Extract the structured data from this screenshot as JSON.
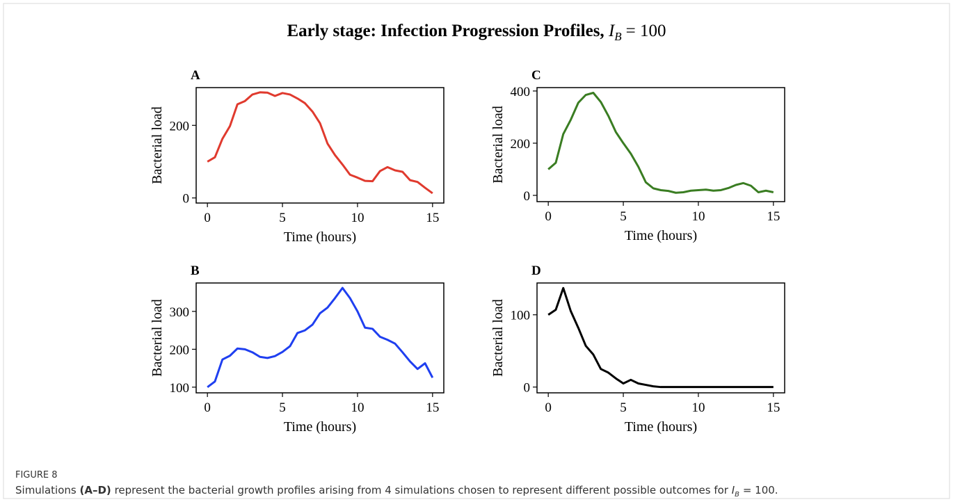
{
  "title": {
    "text": "Early stage: Infection Progression Profiles,",
    "math": {
      "var": "I",
      "sub": "B",
      "eq": "= 100"
    }
  },
  "caption": {
    "label": "FIGURE 8",
    "parts": [
      "Simulations",
      "(A–D)",
      "represent the bacterial growth profiles arising from 4 simulations chosen to represent different possible outcomes for",
      "I",
      "B",
      "= 100."
    ]
  },
  "chart_data": [
    {
      "type": "line",
      "panel_label": "A",
      "x_label": "Time (hours)",
      "y_label": "Bacterial load",
      "color": "#e03a2e",
      "x": [
        0,
        0.5,
        1,
        1.5,
        2,
        2.5,
        3,
        3.5,
        4,
        4.5,
        5,
        5.5,
        6,
        6.5,
        7,
        7.5,
        8,
        8.5,
        9,
        9.5,
        10,
        10.5,
        11,
        11.5,
        12,
        12.5,
        13,
        13.5,
        14,
        14.5,
        15
      ],
      "values": [
        100,
        112,
        163,
        198,
        258,
        267,
        285,
        291,
        290,
        281,
        289,
        285,
        274,
        261,
        238,
        206,
        150,
        118,
        92,
        64,
        56,
        47,
        46,
        74,
        85,
        76,
        72,
        49,
        44,
        28,
        13
      ],
      "xlim": [
        -0.75,
        15.75
      ],
      "xticks": [
        0,
        5,
        10,
        15
      ],
      "ylim": [
        -14,
        304
      ],
      "yticks": [
        0,
        200
      ]
    },
    {
      "type": "line",
      "panel_label": "C",
      "x_label": "Time (hours)",
      "y_label": "Bacterial load",
      "color": "#3a7d22",
      "x": [
        0,
        0.5,
        1,
        1.5,
        2,
        2.5,
        3,
        3.5,
        4,
        4.5,
        5,
        5.5,
        6,
        6.5,
        7,
        7.5,
        8,
        8.5,
        9,
        9.5,
        10,
        10.5,
        11,
        11.5,
        12,
        12.5,
        13,
        13.5,
        14,
        14.5,
        15
      ],
      "values": [
        100,
        125,
        235,
        290,
        355,
        385,
        393,
        358,
        305,
        243,
        200,
        160,
        110,
        50,
        27,
        20,
        17,
        10,
        12,
        18,
        20,
        22,
        18,
        20,
        28,
        40,
        47,
        37,
        12,
        18,
        12
      ],
      "xlim": [
        -0.75,
        15.75
      ],
      "xticks": [
        0,
        5,
        10,
        15
      ],
      "ylim": [
        -24,
        413
      ],
      "yticks": [
        0,
        200,
        400
      ]
    },
    {
      "type": "line",
      "panel_label": "B",
      "x_label": "Time (hours)",
      "y_label": "Bacterial load",
      "color": "#1f3ff0",
      "x": [
        0,
        0.5,
        1,
        1.5,
        2,
        2.5,
        3,
        3.5,
        4,
        4.5,
        5,
        5.5,
        6,
        6.5,
        7,
        7.5,
        8,
        8.5,
        9,
        9.5,
        10,
        10.5,
        11,
        11.5,
        12,
        12.5,
        13,
        13.5,
        14,
        14.5,
        15
      ],
      "values": [
        100,
        115,
        173,
        183,
        202,
        200,
        192,
        180,
        177,
        182,
        193,
        208,
        243,
        250,
        265,
        295,
        310,
        335,
        362,
        335,
        300,
        257,
        254,
        233,
        225,
        215,
        192,
        168,
        148,
        163,
        125
      ],
      "xlim": [
        -0.75,
        15.75
      ],
      "xticks": [
        0,
        5,
        10,
        15
      ],
      "ylim": [
        85,
        375
      ],
      "yticks": [
        100,
        200,
        300
      ]
    },
    {
      "type": "line",
      "panel_label": "D",
      "x_label": "Time (hours)",
      "y_label": "Bacterial load",
      "color": "#000000",
      "x": [
        0,
        0.5,
        1,
        1.5,
        2,
        2.5,
        3,
        3.5,
        4,
        4.5,
        5,
        5.5,
        6,
        6.5,
        7,
        7.5,
        8,
        8.5,
        9,
        9.5,
        10,
        10.5,
        11,
        11.5,
        12,
        12.5,
        13,
        13.5,
        14,
        14.5,
        15
      ],
      "values": [
        100,
        107,
        137,
        105,
        82,
        57,
        45,
        25,
        20,
        12,
        5,
        10,
        5,
        3,
        1,
        0,
        0,
        0,
        0,
        0,
        0,
        0,
        0,
        0,
        0,
        0,
        0,
        0,
        0,
        0,
        0
      ],
      "xlim": [
        -0.75,
        15.75
      ],
      "xticks": [
        0,
        5,
        10,
        15
      ],
      "ylim": [
        -8,
        144
      ],
      "yticks": [
        0,
        100
      ]
    }
  ]
}
